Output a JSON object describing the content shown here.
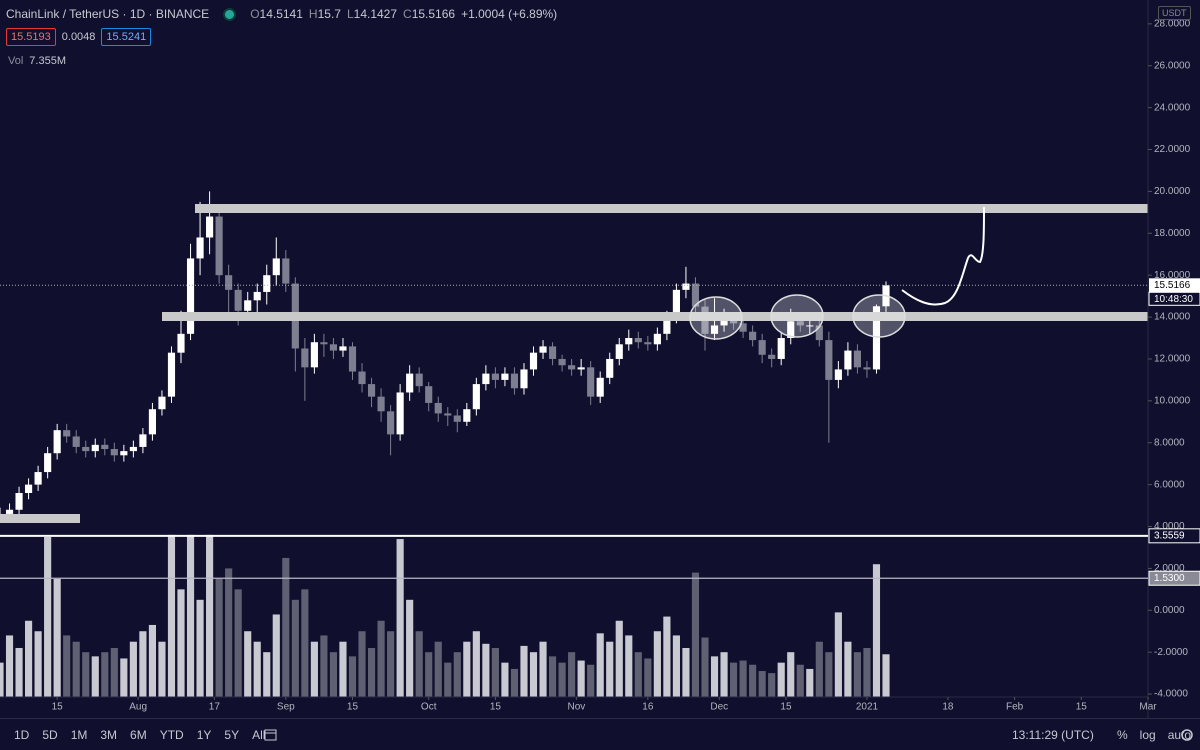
{
  "chart_data": {
    "type": "candlestick",
    "title": "ChainLink / TetherUS · 1D · BINANCE",
    "ohlc_letters": [
      "O",
      "H",
      "L",
      "C"
    ],
    "change": "+1.0004 (+6.89%)",
    "bid": "15.5193",
    "spread": "0.0048",
    "ask": "15.5241",
    "volume_label": "Vol",
    "volume_total": "7.355M",
    "currency": "USDT",
    "countdown": "10:48:30",
    "up_color": "#ffffff",
    "down_color": "#7d7e90",
    "volume_up_color": "#c9c9d2",
    "volume_down_color": "#5f6072",
    "x": [
      2,
      4,
      6,
      8,
      10,
      12,
      14,
      16,
      18,
      20,
      22,
      24,
      26,
      28,
      30,
      32,
      34,
      36,
      38,
      40,
      42,
      44,
      46,
      48,
      50,
      52,
      54,
      56,
      58,
      60,
      62,
      64,
      66,
      68,
      70,
      72,
      74,
      76,
      78,
      80,
      82,
      84,
      86,
      88,
      90,
      92,
      94,
      96,
      98,
      100,
      102,
      104,
      106,
      108,
      110,
      112,
      114,
      116,
      118,
      120,
      122,
      124,
      126,
      128,
      130,
      132,
      134,
      136,
      138,
      140,
      142,
      144,
      146,
      148,
      150,
      152,
      154,
      156,
      158,
      160,
      162,
      164,
      166,
      168,
      170,
      172,
      174,
      176,
      178,
      180,
      182,
      184,
      186,
      188
    ],
    "open": [
      4.5,
      4.6,
      4.8,
      5.6,
      6.0,
      6.6,
      7.5,
      8.6,
      8.3,
      7.8,
      7.6,
      7.9,
      7.7,
      7.4,
      7.6,
      7.8,
      8.4,
      9.6,
      10.2,
      12.3,
      13.2,
      16.8,
      17.8,
      18.8,
      16.0,
      15.3,
      14.3,
      14.8,
      15.2,
      16.0,
      16.8,
      15.6,
      12.5,
      11.6,
      12.8,
      12.7,
      12.4,
      12.6,
      11.4,
      10.8,
      10.2,
      9.5,
      8.4,
      10.4,
      11.3,
      10.7,
      9.9,
      9.4,
      9.3,
      9.0,
      9.6,
      10.8,
      11.3,
      11.0,
      11.3,
      10.6,
      11.5,
      12.3,
      12.6,
      12.0,
      11.7,
      11.5,
      11.6,
      10.2,
      11.1,
      12.0,
      12.7,
      13.0,
      12.8,
      12.7,
      13.2,
      14.0,
      15.3,
      15.6,
      14.5,
      13.2,
      13.6,
      14.0,
      13.7,
      13.3,
      12.9,
      12.2,
      12.0,
      13.0,
      13.8,
      13.6,
      13.6,
      12.9,
      11.0,
      11.5,
      12.4,
      11.6,
      11.5,
      14.5141
    ],
    "high": [
      4.9,
      5.1,
      5.9,
      6.3,
      6.9,
      7.8,
      8.9,
      8.9,
      8.6,
      8.1,
      8.2,
      8.2,
      8.0,
      7.9,
      8.1,
      8.7,
      9.9,
      10.5,
      12.6,
      14.3,
      17.5,
      19.5,
      20.0,
      19.0,
      16.5,
      15.6,
      15.2,
      15.6,
      16.5,
      17.8,
      17.2,
      15.9,
      13.0,
      13.2,
      13.2,
      13.0,
      13.0,
      12.8,
      11.8,
      11.1,
      10.6,
      9.8,
      10.8,
      11.7,
      11.6,
      10.9,
      10.2,
      9.7,
      9.6,
      9.9,
      11.1,
      11.7,
      11.6,
      11.6,
      11.6,
      11.8,
      12.6,
      12.9,
      12.8,
      12.2,
      12.0,
      12.0,
      11.9,
      11.4,
      12.3,
      13.0,
      13.4,
      13.3,
      13.1,
      13.5,
      14.3,
      15.6,
      16.4,
      15.9,
      14.8,
      14.9,
      14.4,
      14.2,
      13.9,
      13.6,
      13.2,
      12.5,
      13.3,
      14.4,
      14.2,
      14.0,
      13.9,
      13.3,
      11.9,
      12.8,
      12.7,
      11.9,
      14.6,
      15.7
    ],
    "low": [
      4.3,
      4.4,
      4.6,
      5.3,
      5.7,
      6.3,
      7.2,
      8.0,
      7.5,
      7.3,
      7.3,
      7.4,
      7.1,
      7.1,
      7.3,
      7.5,
      8.1,
      9.3,
      9.9,
      11.8,
      12.9,
      16.0,
      17.0,
      15.6,
      13.9,
      13.6,
      13.9,
      14.0,
      14.6,
      15.5,
      15.2,
      11.4,
      10.0,
      11.3,
      12.1,
      12.0,
      12.1,
      11.0,
      10.4,
      9.7,
      9.0,
      7.4,
      8.1,
      10.0,
      10.4,
      9.5,
      9.0,
      8.8,
      8.5,
      8.8,
      9.3,
      10.5,
      10.6,
      10.7,
      10.3,
      10.3,
      11.2,
      12.0,
      11.7,
      11.4,
      11.2,
      11.2,
      9.8,
      9.9,
      10.8,
      11.7,
      12.4,
      12.5,
      12.4,
      12.4,
      12.9,
      13.7,
      14.9,
      14.2,
      12.4,
      12.9,
      13.3,
      13.4,
      13.0,
      12.6,
      11.8,
      11.6,
      11.7,
      12.7,
      13.3,
      13.2,
      12.6,
      8.0,
      10.6,
      11.2,
      11.3,
      11.1,
      11.3,
      14.1427
    ],
    "close": [
      4.6,
      4.8,
      5.6,
      6.0,
      6.6,
      7.5,
      8.6,
      8.3,
      7.8,
      7.6,
      7.9,
      7.7,
      7.4,
      7.6,
      7.8,
      8.4,
      9.6,
      10.2,
      12.3,
      13.2,
      16.8,
      17.8,
      18.8,
      16.0,
      15.3,
      14.3,
      14.8,
      15.2,
      16.0,
      16.8,
      15.6,
      12.5,
      11.6,
      12.8,
      12.7,
      12.4,
      12.6,
      11.4,
      10.8,
      10.2,
      9.5,
      8.4,
      10.4,
      11.3,
      10.7,
      9.9,
      9.4,
      9.3,
      9.0,
      9.6,
      10.8,
      11.3,
      11.0,
      11.3,
      10.6,
      11.5,
      12.3,
      12.6,
      12.0,
      11.7,
      11.5,
      11.6,
      10.2,
      11.1,
      12.0,
      12.7,
      13.0,
      12.8,
      12.7,
      13.2,
      14.0,
      15.3,
      15.6,
      14.5,
      13.2,
      13.6,
      14.0,
      13.7,
      13.3,
      12.9,
      12.2,
      12.0,
      13.0,
      13.8,
      13.6,
      13.6,
      12.9,
      11.0,
      11.5,
      12.4,
      11.6,
      11.5,
      14.5162,
      15.5166
    ],
    "volume": [
      -2.5,
      -1.2,
      -1.8,
      -0.5,
      -1.0,
      3.5,
      1.5,
      -1.2,
      -1.5,
      -2.0,
      -2.2,
      -2.0,
      -1.8,
      -2.3,
      -1.5,
      -1.0,
      -0.7,
      -1.5,
      3.6,
      1.0,
      3.6,
      0.5,
      3.6,
      1.5,
      2.0,
      1.0,
      -1.0,
      -1.5,
      -2.0,
      -0.2,
      2.5,
      0.5,
      1.0,
      -1.5,
      -1.2,
      -2.0,
      -1.5,
      -2.2,
      -1.0,
      -1.8,
      -0.5,
      -1.0,
      3.4,
      0.5,
      -1.0,
      -2.0,
      -1.5,
      -2.5,
      -2.0,
      -1.5,
      -1.0,
      -1.6,
      -1.8,
      -2.5,
      -2.8,
      -1.7,
      -2.0,
      -1.5,
      -2.2,
      -2.5,
      -2.0,
      -2.4,
      -2.6,
      -1.1,
      -1.5,
      -0.5,
      -1.2,
      -2.0,
      -2.3,
      -1.0,
      -0.3,
      -1.2,
      -1.8,
      1.8,
      -1.3,
      -2.2,
      -2.0,
      -2.5,
      -2.4,
      -2.6,
      -2.9,
      -3.0,
      -2.5,
      -2.0,
      -2.6,
      -2.8,
      -1.5,
      -2.0,
      -0.1,
      -1.5,
      -2.0,
      -1.8,
      2.2,
      -2.1
    ],
    "xlim": [
      2,
      243
    ],
    "xticks": [
      {
        "value": 14,
        "label": "15"
      },
      {
        "value": 31,
        "label": "Aug"
      },
      {
        "value": 47,
        "label": "17"
      },
      {
        "value": 62,
        "label": "Sep"
      },
      {
        "value": 76,
        "label": "15"
      },
      {
        "value": 92,
        "label": "Oct"
      },
      {
        "value": 106,
        "label": "15"
      },
      {
        "value": 123,
        "label": "Nov"
      },
      {
        "value": 138,
        "label": "16"
      },
      {
        "value": 153,
        "label": "Dec"
      },
      {
        "value": 167,
        "label": "15"
      },
      {
        "value": 184,
        "label": "2021"
      },
      {
        "value": 201,
        "label": "18"
      },
      {
        "value": 215,
        "label": "Feb"
      },
      {
        "value": 229,
        "label": "15"
      },
      {
        "value": 243,
        "label": "Mar"
      }
    ],
    "ylim": [
      -4.14,
      28.9
    ],
    "yticks": [
      {
        "value": 28,
        "label": "28.0000"
      },
      {
        "value": 26,
        "label": "26.0000"
      },
      {
        "value": 24,
        "label": "24.0000"
      },
      {
        "value": 22,
        "label": "22.0000"
      },
      {
        "value": 20,
        "label": "20.0000"
      },
      {
        "value": 18,
        "label": "18.0000"
      },
      {
        "value": 16,
        "label": "16.0000"
      },
      {
        "value": 14,
        "label": "14.0000"
      },
      {
        "value": 12,
        "label": "12.0000"
      },
      {
        "value": 10,
        "label": "10.0000"
      },
      {
        "value": 8,
        "label": "8.0000"
      },
      {
        "value": 6,
        "label": "6.0000"
      },
      {
        "value": 4,
        "label": "4.0000"
      },
      {
        "value": 2,
        "label": "2.0000"
      },
      {
        "value": 0,
        "label": "0.0000"
      },
      {
        "value": -2,
        "label": "-2.0000"
      },
      {
        "value": -4,
        "label": "-4.0000"
      }
    ],
    "hlines": [
      3.5559,
      {
        "value": 1.53,
        "label": "1.5300"
      }
    ],
    "grid": false
  },
  "toolbar": {
    "ranges": [
      "1D",
      "5D",
      "1M",
      "3M",
      "6M",
      "YTD",
      "1Y",
      "5Y",
      "All"
    ],
    "clock": "13:11:29 (UTC)",
    "options": [
      "%",
      "log",
      "auto"
    ]
  }
}
